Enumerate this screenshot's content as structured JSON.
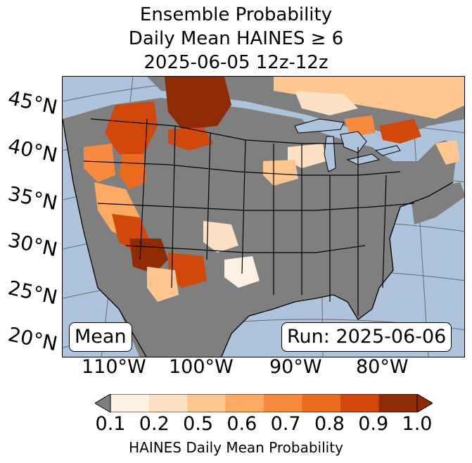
{
  "title": {
    "line1": "Ensemble Probability",
    "line2": "Daily Mean HAINES ≥ 6",
    "line3": "2025-06-05 12z-12z"
  },
  "map": {
    "lat_labels": [
      "45°N",
      "40°N",
      "35°N",
      "30°N",
      "25°N",
      "20°N"
    ],
    "lon_labels": [
      "110°W",
      "100°W",
      "90°W",
      "80°W"
    ],
    "stat_label": "Mean",
    "run_label": "Run: 2025-06-06",
    "colors": {
      "ocean": "#aec4dc",
      "land_low": "#7f7f7f",
      "border": "#000000"
    }
  },
  "colorbar": {
    "label": "HAINES Daily Mean Probability",
    "ticks": [
      "0.1",
      "0.2",
      "0.5",
      "0.6",
      "0.7",
      "0.8",
      "0.9",
      "1.0"
    ],
    "colors": [
      "#fff1e4",
      "#fde1c4",
      "#fdc78f",
      "#fdaa63",
      "#f88a3d",
      "#ea6b1e",
      "#d2480a",
      "#8e2b03"
    ],
    "under_color": "#7f7f7f",
    "over_color": "#8e2b03"
  }
}
